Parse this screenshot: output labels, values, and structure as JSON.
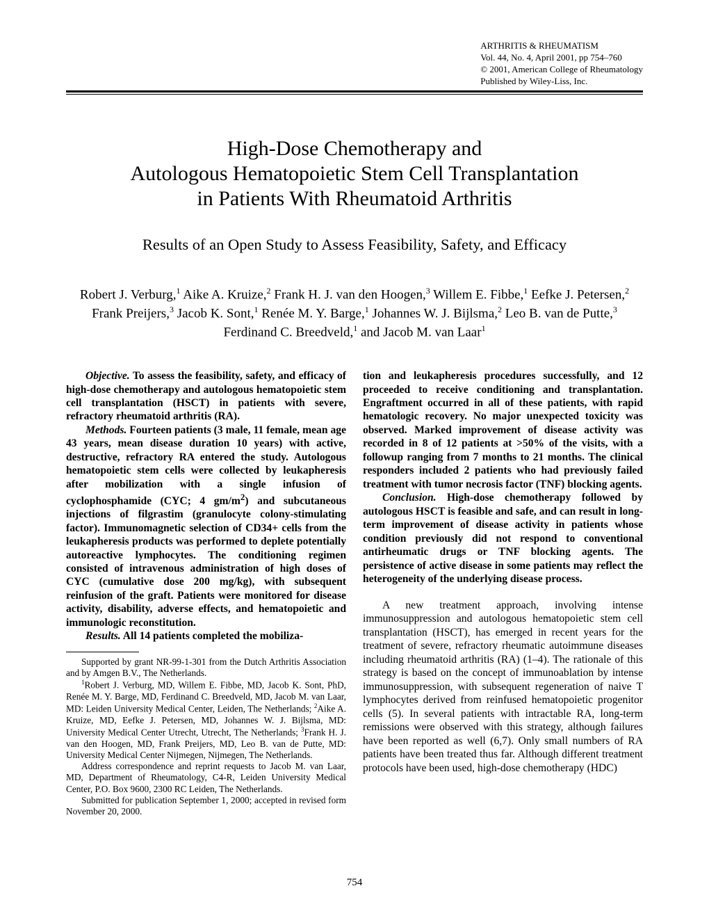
{
  "header": {
    "journal": "ARTHRITIS & RHEUMATISM",
    "volume": "Vol. 44, No. 4, April 2001, pp 754–760",
    "copyright": "© 2001, American College of Rheumatology",
    "publisher": "Published by Wiley-Liss, Inc."
  },
  "title_line1": "High-Dose Chemotherapy and",
  "title_line2": "Autologous Hematopoietic Stem Cell Transplantation",
  "title_line3": "in Patients With Rheumatoid Arthritis",
  "subtitle": "Results of an Open Study to Assess Feasibility, Safety, and Efficacy",
  "authors_html": "Robert J. Verburg,<sup>1</sup> Aike A. Kruize,<sup>2</sup> Frank H. J. van den Hoogen,<sup>3</sup> Willem E. Fibbe,<sup>1</sup> Eefke J. Petersen,<sup>2</sup> Frank Preijers,<sup>3</sup> Jacob K. Sont,<sup>1</sup> Renée M. Y. Barge,<sup>1</sup> Johannes W. J. Bijlsma,<sup>2</sup> Leo B. van de Putte,<sup>3</sup> Ferdinand C. Breedveld,<sup>1</sup> and Jacob M. van Laar<sup>1</sup>",
  "abstract": {
    "objective_label": "Objective.",
    "objective_text": " To assess the feasibility, safety, and efficacy of high-dose chemotherapy and autologous hematopoietic stem cell transplantation (HSCT) in patients with severe, refractory rheumatoid arthritis (RA).",
    "methods_label": "Methods.",
    "methods_text": " Fourteen patients (3 male, 11 female, mean age 43 years, mean disease duration 10 years) with active, destructive, refractory RA entered the study. Autologous hematopoietic stem cells were collected by leukapheresis after mobilization with a single infusion of cyclophosphamide (CYC; 4 gm/m<sup>2</sup>) and subcutaneous injections of filgrastim (granulocyte colony-stimulating factor). Immunomagnetic selection of CD34+ cells from the leukapheresis products was performed to deplete potentially autoreactive lymphocytes. The conditioning regimen consisted of intravenous administration of high doses of CYC (cumulative dose 200 mg/kg), with subsequent reinfusion of the graft. Patients were monitored for disease activity, disability, adverse effects, and hematopoietic and immunologic reconstitution.",
    "results_label": "Results.",
    "results_text_col1": " All 14 patients completed the mobiliza-",
    "results_text_col2": "tion and leukapheresis procedures successfully, and 12 proceeded to receive conditioning and transplantation. Engraftment occurred in all of these patients, with rapid hematologic recovery. No major unexpected toxicity was observed. Marked improvement of disease activity was recorded in 8 of 12 patients at >50% of the visits, with a followup ranging from 7 months to 21 months. The clinical responders included 2 patients who had previously failed treatment with tumor necrosis factor (TNF) blocking agents.",
    "conclusion_label": "Conclusion.",
    "conclusion_text": " High-dose chemotherapy followed by autologous HSCT is feasible and safe, and can result in long-term improvement of disease activity in patients whose condition previously did not respond to conventional antirheumatic drugs or TNF blocking agents. The persistence of active disease in some patients may reflect the heterogeneity of the underlying disease process."
  },
  "body_paragraph": "A new treatment approach, involving intense immunosuppression and autologous hematopoietic stem cell transplantation (HSCT), has emerged in recent years for the treatment of severe, refractory rheumatic autoimmune diseases including rheumatoid arthritis (RA) (1–4). The rationale of this strategy is based on the concept of immunoablation by intense immunosuppression, with subsequent regeneration of naive T lymphocytes derived from reinfused hematopoietic progenitor cells (5). In several patients with intractable RA, long-term remissions were observed with this strategy, although failures have been reported as well (6,7). Only small numbers of RA patients have been treated thus far. Although different treatment protocols have been used, high-dose chemotherapy (HDC)",
  "footnotes": {
    "support": "Supported by grant NR-99-1-301 from the Dutch Arthritis Association and by Amgen B.V., The Netherlands.",
    "affiliations": "<sup>1</sup>Robert J. Verburg, MD, Willem E. Fibbe, MD, Jacob K. Sont, PhD, Renée M. Y. Barge, MD, Ferdinand C. Breedveld, MD, Jacob M. van Laar, MD: Leiden University Medical Center, Leiden, The Netherlands; <sup>2</sup>Aike A. Kruize, MD, Eefke J. Petersen, MD, Johannes W. J. Bijlsma, MD: University Medical Center Utrecht, Utrecht, The Netherlands; <sup>3</sup>Frank H. J. van den Hoogen, MD, Frank Preijers, MD, Leo B. van de Putte, MD: University Medical Center Nijmegen, Nijmegen, The Netherlands.",
    "correspondence": "Address correspondence and reprint requests to Jacob M. van Laar, MD, Department of Rheumatology, C4-R, Leiden University Medical Center, P.O. Box 9600, 2300 RC Leiden, The Netherlands.",
    "submitted": "Submitted for publication September 1, 2000; accepted in revised form November 20, 2000."
  },
  "page_number": "754"
}
